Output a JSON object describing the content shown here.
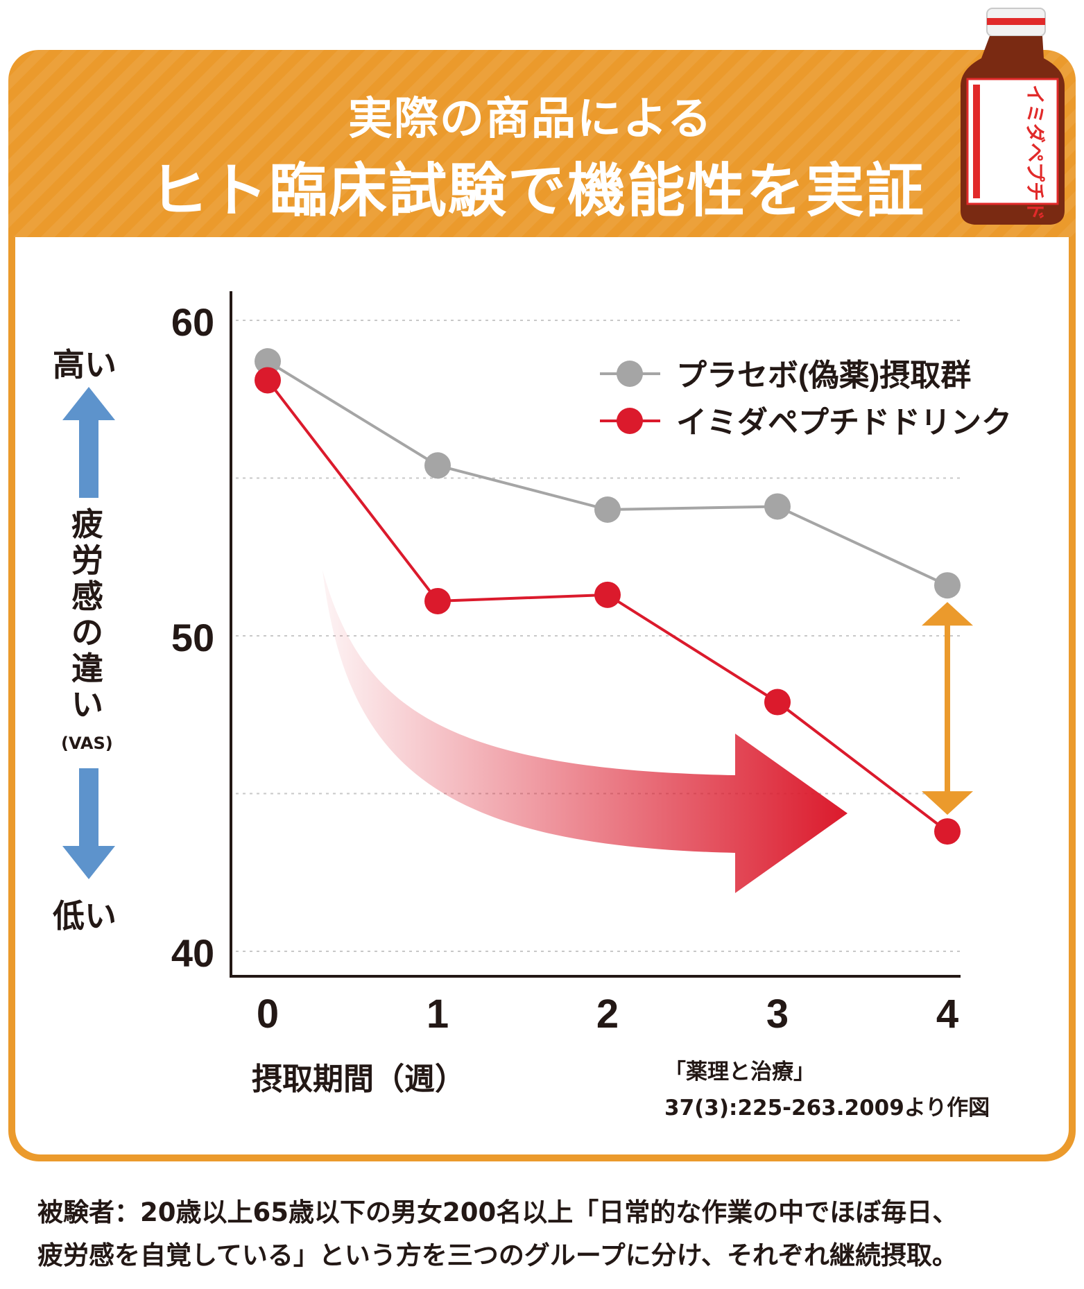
{
  "header": {
    "line1": "実際の商品による",
    "line2": "ヒト臨床試験で機能性を実証"
  },
  "product": {
    "label": "イミダペプチド",
    "icon": "drink-bottle-icon"
  },
  "y_side": {
    "high": "高い",
    "low": "低い",
    "measure": [
      "疲",
      "労",
      "感",
      "の",
      "違",
      "い"
    ],
    "unit": "(VAS)"
  },
  "colors": {
    "accent": "#eb9a2c",
    "placebo": "#a5a5a5",
    "drink": "#db1a2c",
    "arrow_blue": "#5d93cc",
    "gap_arrow": "#eb9a2c"
  },
  "chart_data": {
    "type": "line",
    "x": [
      0,
      1,
      2,
      3,
      4
    ],
    "xlabel": "摂取期間（週）",
    "ylabel": "",
    "y_ticks": [
      60,
      50,
      40
    ],
    "ylim": [
      40,
      60
    ],
    "grid": true,
    "legend_position": "top-right",
    "series": [
      {
        "name": "プラセボ(偽薬)摂取群",
        "color": "#a5a5a5",
        "values": [
          58.7,
          55.4,
          54.0,
          54.1,
          51.6
        ]
      },
      {
        "name": "イミダペプチドドリンク",
        "color": "#db1a2c",
        "values": [
          58.1,
          51.1,
          51.3,
          47.9,
          43.8
        ]
      }
    ]
  },
  "citation": {
    "line1": "「薬理と治療」",
    "line2": "37(3):225-263.2009より作図"
  },
  "footnote": {
    "line1": "被験者：20歳以上65歳以下の男女200名以上「日常的な作業の中でほぼ毎日、",
    "line2": "疲労感を自覚している」という方を三つのグループに分け、それぞれ継続摂取。"
  }
}
